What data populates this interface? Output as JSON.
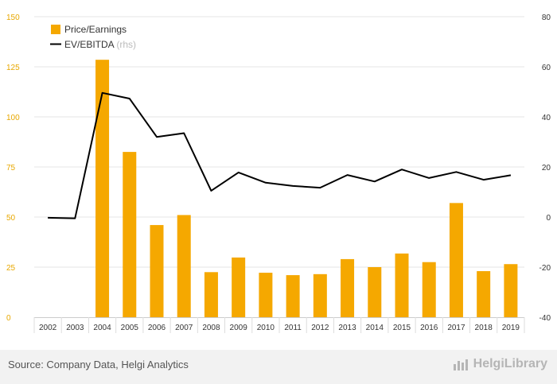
{
  "chart_data": {
    "type": "bar+line",
    "categories": [
      "2002",
      "2003",
      "2004",
      "2005",
      "2006",
      "2007",
      "2008",
      "2009",
      "2010",
      "2011",
      "2012",
      "2013",
      "2014",
      "2015",
      "2016",
      "2017",
      "2018",
      "2019"
    ],
    "series": [
      {
        "name": "Price/Earnings",
        "type": "bar",
        "axis": "left",
        "color": "#f5a800",
        "values": [
          null,
          null,
          128.5,
          82.5,
          46,
          51,
          22.5,
          29.8,
          22.2,
          21,
          21.5,
          29,
          25,
          31.8,
          27.5,
          57,
          23,
          26.5
        ]
      },
      {
        "name": "EV/EBITDA",
        "type": "line",
        "axis": "right",
        "color": "#000000",
        "values": [
          -0.3,
          -0.5,
          49.6,
          47.3,
          32,
          33.5,
          10.5,
          17.8,
          13.7,
          12.4,
          11.7,
          16.8,
          14.2,
          19,
          15.6,
          18,
          14.9,
          16.7
        ]
      }
    ],
    "legend": [
      {
        "label": "Price/Earnings",
        "suffix": ""
      },
      {
        "label": "EV/EBITDA",
        "suffix": " (rhs)"
      }
    ],
    "y_left": {
      "range": [
        0,
        150
      ],
      "ticks": [
        "0",
        "25",
        "50",
        "75",
        "100",
        "125",
        "150"
      ]
    },
    "y_right": {
      "range": [
        -40,
        80
      ],
      "ticks": [
        "-40",
        "-20",
        "0",
        "20",
        "40",
        "60",
        "80"
      ]
    },
    "grid": true,
    "legend_position": "top-left"
  },
  "footer": {
    "source": "Source: Company Data, Helgi Analytics",
    "brand": "HelgiLibrary"
  }
}
